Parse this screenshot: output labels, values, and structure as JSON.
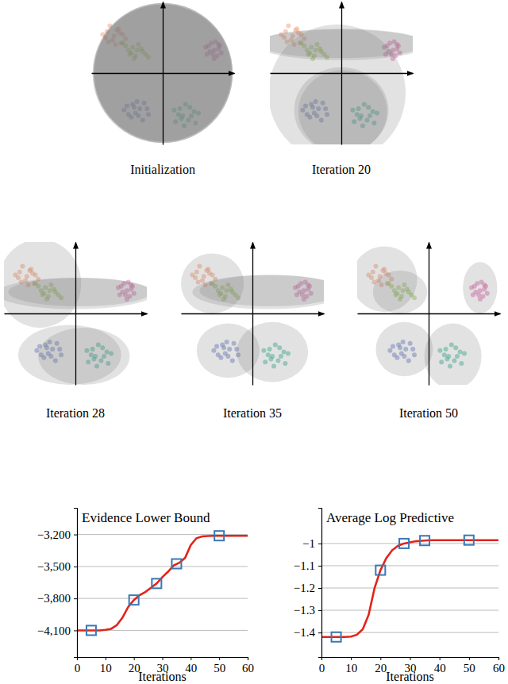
{
  "chart_data": [
    {
      "type": "scatter",
      "tick_labels": false,
      "xlim": [
        -5,
        5
      ],
      "ylim": [
        -5,
        5
      ],
      "series": [
        {
          "color": "#f2a07b",
          "x": [
            -3.9,
            -3.5,
            -2.8,
            -3.1,
            -4.0,
            -3.3,
            -2.6,
            -3.7,
            -3.0,
            -3.4,
            -2.9,
            -3.8,
            -3.2,
            -4.2
          ],
          "values": [
            2.9,
            2.3,
            2.7,
            3.1,
            2.5,
            2.0,
            2.4,
            3.3,
            2.8,
            2.6,
            2.1,
            2.2,
            3.0,
            2.7
          ]
        },
        {
          "color": "#9ccc5a",
          "x": [
            -2.6,
            -2.2,
            -1.5,
            -1.9,
            -2.4,
            -1.2,
            -1.7,
            -2.1,
            -2.8,
            -1.4,
            -2.0,
            -1.0,
            -2.3,
            -1.8
          ],
          "values": [
            1.9,
            1.4,
            1.7,
            1.2,
            1.6,
            1.3,
            2.0,
            1.8,
            2.1,
            1.5,
            1.0,
            1.1,
            1.3,
            1.6
          ]
        },
        {
          "color": "#df6fb3",
          "x": [
            3.2,
            3.5,
            3.9,
            3.7,
            3.3,
            4.1,
            3.6,
            3.0,
            3.8,
            3.4,
            4.0,
            3.6,
            3.1,
            3.9
          ],
          "values": [
            1.9,
            1.3,
            1.7,
            2.2,
            1.5,
            1.4,
            1.0,
            1.8,
            1.2,
            2.1,
            1.9,
            1.6,
            1.3,
            2.0
          ]
        },
        {
          "color": "#6f82c8",
          "x": [
            -2.5,
            -1.9,
            -1.3,
            -2.2,
            -1.6,
            -1.0,
            -2.7,
            -1.8,
            -1.4,
            -2.0,
            -2.4,
            -1.1,
            -1.7,
            -2.1
          ],
          "values": [
            -2.3,
            -2.8,
            -2.1,
            -3.1,
            -2.5,
            -2.9,
            -2.6,
            -2.0,
            -3.3,
            -2.4,
            -2.9,
            -2.5,
            -3.0,
            -2.2
          ]
        },
        {
          "color": "#3db89a",
          "x": [
            0.8,
            1.3,
            1.9,
            2.3,
            1.1,
            1.6,
            2.0,
            0.9,
            1.5,
            2.5,
            1.2,
            1.8,
            2.2,
            1.4
          ],
          "values": [
            -2.6,
            -3.2,
            -2.4,
            -3.5,
            -2.9,
            -2.2,
            -3.0,
            -3.4,
            -3.7,
            -2.8,
            -2.5,
            -3.3,
            -2.7,
            -3.0
          ]
        }
      ],
      "panels": [
        {
          "title": "Initialization",
          "ellipses": [
            {
              "cx": 0,
              "cy": 0,
              "rx": 4.9,
              "ry": 4.9
            },
            {
              "cx": 0,
              "cy": 0.05,
              "rx": 4.85,
              "ry": 4.85
            },
            {
              "cx": 0,
              "cy": -0.05,
              "rx": 4.9,
              "ry": 4.85
            },
            {
              "cx": 0.05,
              "cy": 0,
              "rx": 4.85,
              "ry": 4.9
            },
            {
              "cx": 0,
              "cy": 0,
              "rx": 4.8,
              "ry": 4.8
            }
          ]
        },
        {
          "title": "Iteration 20",
          "ellipses": [
            {
              "cx": 0,
              "cy": 2.0,
              "rx": 6.0,
              "ry": 1.1
            },
            {
              "cx": 0,
              "cy": 2.05,
              "rx": 5.9,
              "ry": 1.0
            },
            {
              "cx": -0.3,
              "cy": -1.4,
              "rx": 4.8,
              "ry": 4.8
            },
            {
              "cx": 0,
              "cy": -2.6,
              "rx": 3.3,
              "ry": 3.0
            },
            {
              "cx": 0.1,
              "cy": -2.7,
              "rx": 3.1,
              "ry": 2.9
            }
          ]
        },
        {
          "title": "Iteration 28",
          "ellipses": [
            {
              "cx": 0,
              "cy": 1.4,
              "rx": 5.5,
              "ry": 1.1
            },
            {
              "cx": -2.5,
              "cy": 2.1,
              "rx": 2.9,
              "ry": 3.1
            },
            {
              "cx": -0.4,
              "cy": -2.9,
              "rx": 3.6,
              "ry": 2.1
            },
            {
              "cx": 0.6,
              "cy": -3.0,
              "rx": 3.2,
              "ry": 2.0
            },
            {
              "cx": 0.3,
              "cy": 1.5,
              "rx": 5.0,
              "ry": 1.0
            }
          ]
        },
        {
          "title": "Iteration 35",
          "ellipses": [
            {
              "cx": -2.8,
              "cy": 2.1,
              "rx": 2.2,
              "ry": 2.1
            },
            {
              "cx": 1.1,
              "cy": 1.5,
              "rx": 5.3,
              "ry": 1.2
            },
            {
              "cx": -1.7,
              "cy": -2.6,
              "rx": 2.2,
              "ry": 1.9
            },
            {
              "cx": 1.4,
              "cy": -2.7,
              "rx": 2.5,
              "ry": 2.1
            },
            {
              "cx": 1.3,
              "cy": 1.6,
              "rx": 5.0,
              "ry": 1.1
            }
          ]
        },
        {
          "title": "Iteration 50",
          "ellipses": [
            {
              "cx": -3.1,
              "cy": 2.4,
              "rx": 2.3,
              "ry": 2.3
            },
            {
              "cx": -2.0,
              "cy": 1.5,
              "rx": 1.9,
              "ry": 1.5
            },
            {
              "cx": 3.6,
              "cy": 1.8,
              "rx": 1.2,
              "ry": 1.8
            },
            {
              "cx": -1.7,
              "cy": -2.5,
              "rx": 2.0,
              "ry": 1.9
            },
            {
              "cx": 1.7,
              "cy": -3.0,
              "rx": 2.0,
              "ry": 2.3
            }
          ]
        }
      ]
    },
    {
      "type": "line",
      "title": "Evidence Lower Bound",
      "x_label": "Iterations",
      "grid": "y",
      "xlim": [
        0,
        60
      ],
      "xticks": [
        0,
        10,
        20,
        30,
        40,
        50,
        60
      ],
      "ylim": [
        -4350,
        -2950
      ],
      "yticks": [
        {
          "value": -4100,
          "label": "−4,100"
        },
        {
          "value": -3800,
          "label": "−3,800"
        },
        {
          "value": -3500,
          "label": "−3,500"
        },
        {
          "value": -3200,
          "label": "−3,200"
        }
      ],
      "series": [
        {
          "type": "line",
          "color": "#e3231b",
          "line_style": "solid",
          "x": [
            0,
            2,
            4,
            6,
            8,
            10,
            12,
            14,
            16,
            18,
            20,
            22,
            24,
            26,
            28,
            30,
            32,
            34,
            36,
            38,
            40,
            42,
            44,
            46,
            48,
            50,
            52,
            54,
            56,
            58,
            60
          ],
          "values": [
            -4100,
            -4100,
            -4100,
            -4100,
            -4100,
            -4095,
            -4085,
            -4050,
            -3980,
            -3880,
            -3815,
            -3770,
            -3740,
            -3700,
            -3660,
            -3600,
            -3550,
            -3490,
            -3465,
            -3420,
            -3300,
            -3235,
            -3218,
            -3214,
            -3212,
            -3212,
            -3212,
            -3212,
            -3212,
            -3212,
            -3212
          ]
        },
        {
          "type": "scatter",
          "color": "#3a78b5",
          "marker": "square",
          "x": [
            5,
            20,
            28,
            35,
            50
          ],
          "values": [
            -4100,
            -3815,
            -3660,
            -3475,
            -3212
          ]
        }
      ]
    },
    {
      "type": "line",
      "title": "Average Log Predictive",
      "x_label": "Iterations",
      "grid": "y",
      "xlim": [
        0,
        60
      ],
      "xticks": [
        0,
        10,
        20,
        30,
        40,
        50,
        60
      ],
      "ylim": [
        -1.51,
        -0.84
      ],
      "yticks": [
        {
          "value": -1.4,
          "label": "−1.4"
        },
        {
          "value": -1.3,
          "label": "−1.3"
        },
        {
          "value": -1.2,
          "label": "−1.2"
        },
        {
          "value": -1.1,
          "label": "−1.1"
        },
        {
          "value": -1,
          "label": "−1"
        }
      ],
      "series": [
        {
          "type": "line",
          "color": "#e3231b",
          "line_style": "solid",
          "x": [
            0,
            2,
            4,
            6,
            8,
            10,
            12,
            14,
            16,
            18,
            20,
            22,
            24,
            26,
            28,
            30,
            32,
            34,
            36,
            38,
            40,
            42,
            44,
            46,
            48,
            50,
            52,
            54,
            56,
            58,
            60
          ],
          "values": [
            -1.42,
            -1.42,
            -1.42,
            -1.42,
            -1.42,
            -1.418,
            -1.41,
            -1.385,
            -1.32,
            -1.2,
            -1.12,
            -1.065,
            -1.03,
            -1.01,
            -1.0,
            -0.995,
            -0.99,
            -0.988,
            -0.986,
            -0.985,
            -0.985,
            -0.985,
            -0.985,
            -0.985,
            -0.985,
            -0.985,
            -0.985,
            -0.985,
            -0.985,
            -0.985,
            -0.985
          ]
        },
        {
          "type": "scatter",
          "color": "#3a78b5",
          "marker": "square",
          "x": [
            5,
            20,
            28,
            35,
            50
          ],
          "values": [
            -1.42,
            -1.12,
            -1.0,
            -0.987,
            -0.985
          ]
        }
      ]
    }
  ]
}
